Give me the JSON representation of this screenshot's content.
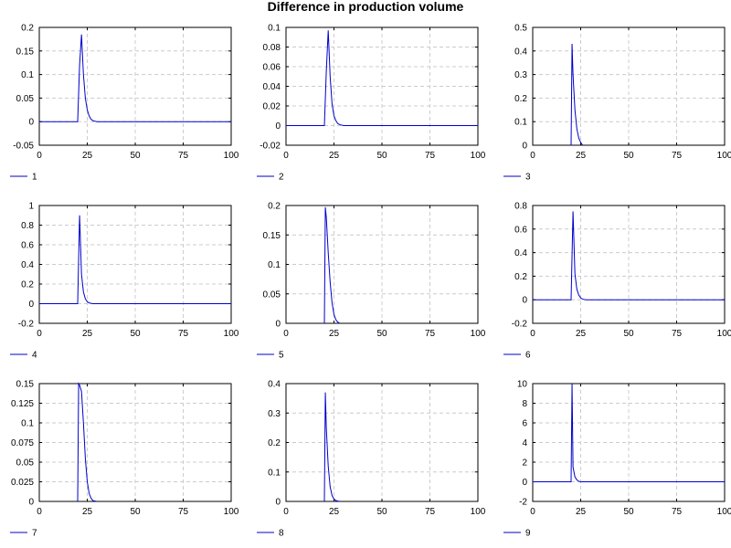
{
  "title": "Difference in production volume",
  "colors": {
    "line": "#0000cc",
    "grid": "#cccccc",
    "axis": "#000000"
  },
  "chart_data": [
    {
      "type": "line",
      "legend": "1",
      "xlim": [
        0,
        100
      ],
      "ylim": [
        -0.05,
        0.2
      ],
      "xticks": [
        0,
        25,
        50,
        75,
        100
      ],
      "xtick_labels": [
        "0",
        "25",
        "50",
        "75",
        "100"
      ],
      "yticks": [
        -0.05,
        0,
        0.05,
        0.1,
        0.15,
        0.2
      ],
      "ytick_labels": [
        "-0.05",
        "0",
        "0.05",
        "0.1",
        "0.15",
        "0.2"
      ],
      "grid": true,
      "series": [
        {
          "x": [
            0,
            20,
            21,
            22,
            23,
            24,
            25,
            26,
            27,
            28,
            29,
            30,
            100
          ],
          "y": [
            0,
            0,
            0.12,
            0.185,
            0.1,
            0.05,
            0.025,
            0.012,
            0.005,
            0.002,
            0.001,
            0,
            0
          ]
        }
      ]
    },
    {
      "type": "line",
      "legend": "2",
      "xlim": [
        0,
        100
      ],
      "ylim": [
        -0.02,
        0.1
      ],
      "xticks": [
        0,
        25,
        50,
        75,
        100
      ],
      "xtick_labels": [
        "0",
        "25",
        "50",
        "75",
        "100"
      ],
      "yticks": [
        -0.02,
        0,
        0.02,
        0.04,
        0.06,
        0.08,
        0.1
      ],
      "ytick_labels": [
        "-0.02",
        "0",
        "0.02",
        "0.04",
        "0.06",
        "0.08",
        "0.1"
      ],
      "grid": true,
      "series": [
        {
          "x": [
            0,
            20,
            21,
            22,
            23,
            24,
            25,
            26,
            27,
            28,
            30,
            100
          ],
          "y": [
            0,
            0,
            0.055,
            0.097,
            0.05,
            0.022,
            0.01,
            0.005,
            0.002,
            0.001,
            0,
            0
          ]
        }
      ]
    },
    {
      "type": "line",
      "legend": "3",
      "xlim": [
        0,
        100
      ],
      "ylim": [
        0,
        0.5
      ],
      "xticks": [
        0,
        25,
        50,
        75,
        100
      ],
      "xtick_labels": [
        "0",
        "25",
        "50",
        "75",
        "100"
      ],
      "yticks": [
        0,
        0.1,
        0.2,
        0.3,
        0.4,
        0.5
      ],
      "ytick_labels": [
        "0",
        "0.1",
        "0.2",
        "0.3",
        "0.4",
        "0.5"
      ],
      "grid": true,
      "series": [
        {
          "x": [
            20,
            20.5,
            21,
            22,
            23,
            24,
            25,
            26
          ],
          "y": [
            0,
            0.43,
            0.3,
            0.15,
            0.07,
            0.03,
            0.012,
            0
          ]
        }
      ]
    },
    {
      "type": "line",
      "legend": "4",
      "xlim": [
        0,
        100
      ],
      "ylim": [
        -0.2,
        1
      ],
      "xticks": [
        0,
        25,
        50,
        75,
        100
      ],
      "xtick_labels": [
        "0",
        "25",
        "50",
        "75",
        "100"
      ],
      "yticks": [
        -0.2,
        0,
        0.2,
        0.4,
        0.6,
        0.8,
        1
      ],
      "ytick_labels": [
        "-0.2",
        "0",
        "0.2",
        "0.4",
        "0.6",
        "0.8",
        "1"
      ],
      "grid": true,
      "series": [
        {
          "x": [
            0,
            20,
            21,
            22,
            23,
            24,
            25,
            26,
            27,
            28,
            100
          ],
          "y": [
            0,
            0,
            0.9,
            0.3,
            0.12,
            0.05,
            0.02,
            0.008,
            0.003,
            0,
            0
          ]
        }
      ]
    },
    {
      "type": "line",
      "legend": "5",
      "xlim": [
        0,
        100
      ],
      "ylim": [
        0,
        0.2
      ],
      "xticks": [
        0,
        25,
        50,
        75,
        100
      ],
      "xtick_labels": [
        "0",
        "25",
        "50",
        "75",
        "100"
      ],
      "yticks": [
        0,
        0.05,
        0.1,
        0.15,
        0.2
      ],
      "ytick_labels": [
        "0",
        "0.05",
        "0.1",
        "0.15",
        "0.2"
      ],
      "grid": true,
      "series": [
        {
          "x": [
            20,
            20.5,
            21,
            22,
            23,
            24,
            25,
            26,
            27,
            28
          ],
          "y": [
            0,
            0.197,
            0.18,
            0.12,
            0.07,
            0.035,
            0.015,
            0.006,
            0.002,
            0
          ]
        }
      ]
    },
    {
      "type": "line",
      "legend": "6",
      "xlim": [
        0,
        100
      ],
      "ylim": [
        -0.2,
        0.8
      ],
      "xticks": [
        0,
        25,
        50,
        75,
        100
      ],
      "xtick_labels": [
        "0",
        "25",
        "50",
        "75",
        "100"
      ],
      "yticks": [
        -0.2,
        0,
        0.2,
        0.4,
        0.6,
        0.8
      ],
      "ytick_labels": [
        "-0.2",
        "0",
        "0.2",
        "0.4",
        "0.6",
        "0.8"
      ],
      "grid": true,
      "series": [
        {
          "x": [
            0,
            20,
            21,
            22,
            23,
            24,
            25,
            26,
            27,
            28,
            100
          ],
          "y": [
            0,
            0,
            0.75,
            0.22,
            0.09,
            0.04,
            0.015,
            0.006,
            0.002,
            0,
            0
          ]
        }
      ]
    },
    {
      "type": "line",
      "legend": "7",
      "xlim": [
        0,
        100
      ],
      "ylim": [
        0,
        0.15
      ],
      "xticks": [
        0,
        25,
        50,
        75,
        100
      ],
      "xtick_labels": [
        "0",
        "25",
        "50",
        "75",
        "100"
      ],
      "yticks": [
        0,
        0.025,
        0.05,
        0.075,
        0.1,
        0.125,
        0.15
      ],
      "ytick_labels": [
        "0",
        "0.025",
        "0.05",
        "0.075",
        "0.1",
        "0.125",
        "0.15"
      ],
      "grid": true,
      "series": [
        {
          "x": [
            20,
            20.5,
            21,
            22,
            23,
            24,
            25,
            26,
            27,
            28,
            29,
            30
          ],
          "y": [
            0,
            0.15,
            0.148,
            0.14,
            0.1,
            0.055,
            0.025,
            0.01,
            0.004,
            0.001,
            0.0005,
            0
          ]
        }
      ]
    },
    {
      "type": "line",
      "legend": "8",
      "xlim": [
        0,
        100
      ],
      "ylim": [
        0,
        0.4
      ],
      "xticks": [
        0,
        25,
        50,
        75,
        100
      ],
      "xtick_labels": [
        "0",
        "25",
        "50",
        "75",
        "100"
      ],
      "yticks": [
        0,
        0.1,
        0.2,
        0.3,
        0.4
      ],
      "ytick_labels": [
        "0",
        "0.1",
        "0.2",
        "0.3",
        "0.4"
      ],
      "grid": true,
      "series": [
        {
          "x": [
            20,
            20.5,
            21,
            22,
            23,
            24,
            25,
            26,
            27,
            28
          ],
          "y": [
            0,
            0.37,
            0.25,
            0.12,
            0.05,
            0.02,
            0.008,
            0.003,
            0.001,
            0
          ]
        }
      ]
    },
    {
      "type": "line",
      "legend": "9",
      "xlim": [
        0,
        100
      ],
      "ylim": [
        -2,
        10
      ],
      "xticks": [
        0,
        25,
        50,
        75,
        100
      ],
      "xtick_labels": [
        "0",
        "25",
        "50",
        "75",
        "100"
      ],
      "yticks": [
        -2,
        0,
        2,
        4,
        6,
        8,
        10
      ],
      "ytick_labels": [
        "-2",
        "0",
        "2",
        "4",
        "6",
        "8",
        "10"
      ],
      "grid": true,
      "series": [
        {
          "x": [
            0,
            20,
            20.5,
            21,
            22,
            23,
            24,
            25,
            100
          ],
          "y": [
            0,
            0,
            10,
            1.5,
            0.5,
            0.2,
            0.05,
            0,
            0
          ]
        }
      ]
    }
  ]
}
